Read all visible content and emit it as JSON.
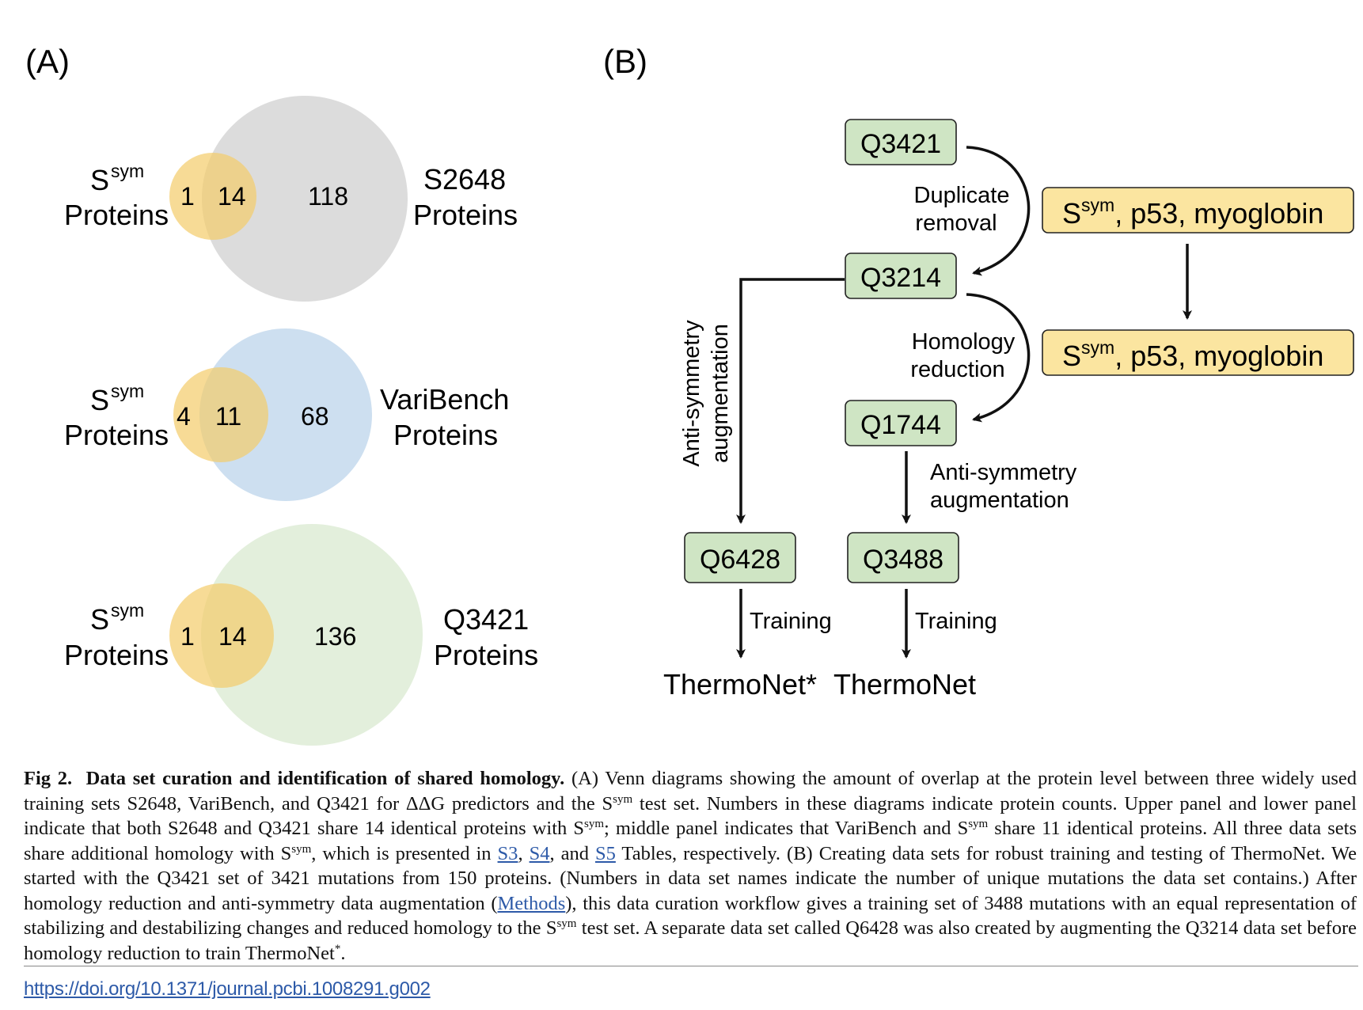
{
  "panelA": {
    "label": "(A)",
    "sym_base": "S",
    "sym_sup": "sym",
    "proteins_word": "Proteins",
    "venns": [
      {
        "only_left": "1",
        "shared": "14",
        "only_right": "118",
        "right_name": "S2648",
        "right_color": "#dcdcdc"
      },
      {
        "only_left": "4",
        "shared": "11",
        "only_right": "68",
        "right_name": "VariBench",
        "right_color": "#cddff0"
      },
      {
        "only_left": "1",
        "shared": "14",
        "only_right": "136",
        "right_name": "Q3421",
        "right_color": "#e3efdc"
      }
    ],
    "left_color": "#f4cc6a"
  },
  "panelB": {
    "label": "(B)",
    "boxes": {
      "q3421": "Q3421",
      "q3214": "Q3214",
      "q1744": "Q1744",
      "q6428": "Q6428",
      "q3488": "Q3488"
    },
    "yellow_box_text": ", p53, myoglobin",
    "steps": {
      "duplicate_1": "Duplicate",
      "duplicate_2": "removal",
      "homology_1": "Homology",
      "homology_2": "reduction",
      "antisym_1": "Anti-symmetry",
      "antisym_2": "augmentation",
      "training": "Training"
    },
    "outputs": {
      "left": "ThermoNet*",
      "right": "ThermoNet"
    },
    "colors": {
      "green_box": "#cfe5c4",
      "yellow_box": "#fbe5a0"
    }
  },
  "caption": {
    "fig_label": "Fig 2.",
    "title": "Data set curation and identification of shared homology.",
    "t1": " (A) Venn diagrams showing the amount of overlap at the protein level between three widely used training sets S2648, VariBench, and Q3421 for ΔΔG predictors and the S",
    "t2": " test set. Numbers in these diagrams indicate protein counts. Upper panel and lower panel indicate that both S2648 and Q3421 share 14 identical proteins with S",
    "t3": "; middle panel indicates that VariBench and S",
    "t4": " share 11 identical proteins. All three data sets share additional homology with S",
    "t5": ", which is presented in ",
    "link_s3": "S3",
    "sep1": ", ",
    "link_s4": "S4",
    "sep2": ", and ",
    "link_s5": "S5",
    "t6": " Tables, respectively. (B) Creating data sets for robust training and testing of ThermoNet. We started with the Q3421 set of 3421 mutations from 150 proteins. (Numbers in data set names indicate the number of unique mutations the data set contains.) After homology reduction and anti-symmetry data augmentation (",
    "link_methods": "Methods",
    "t7": "), this data curation workflow gives a training set of 3488 mutations with an equal representation of stabilizing and destabilizing changes and reduced homology to the S",
    "t8": " test set. A separate data set called Q6428 was also created by augmenting the Q3214 data set before homology reduction to train ThermoNet",
    "star": "*",
    "t9": "."
  },
  "doi": "https://doi.org/10.1371/journal.pcbi.1008291.g002"
}
